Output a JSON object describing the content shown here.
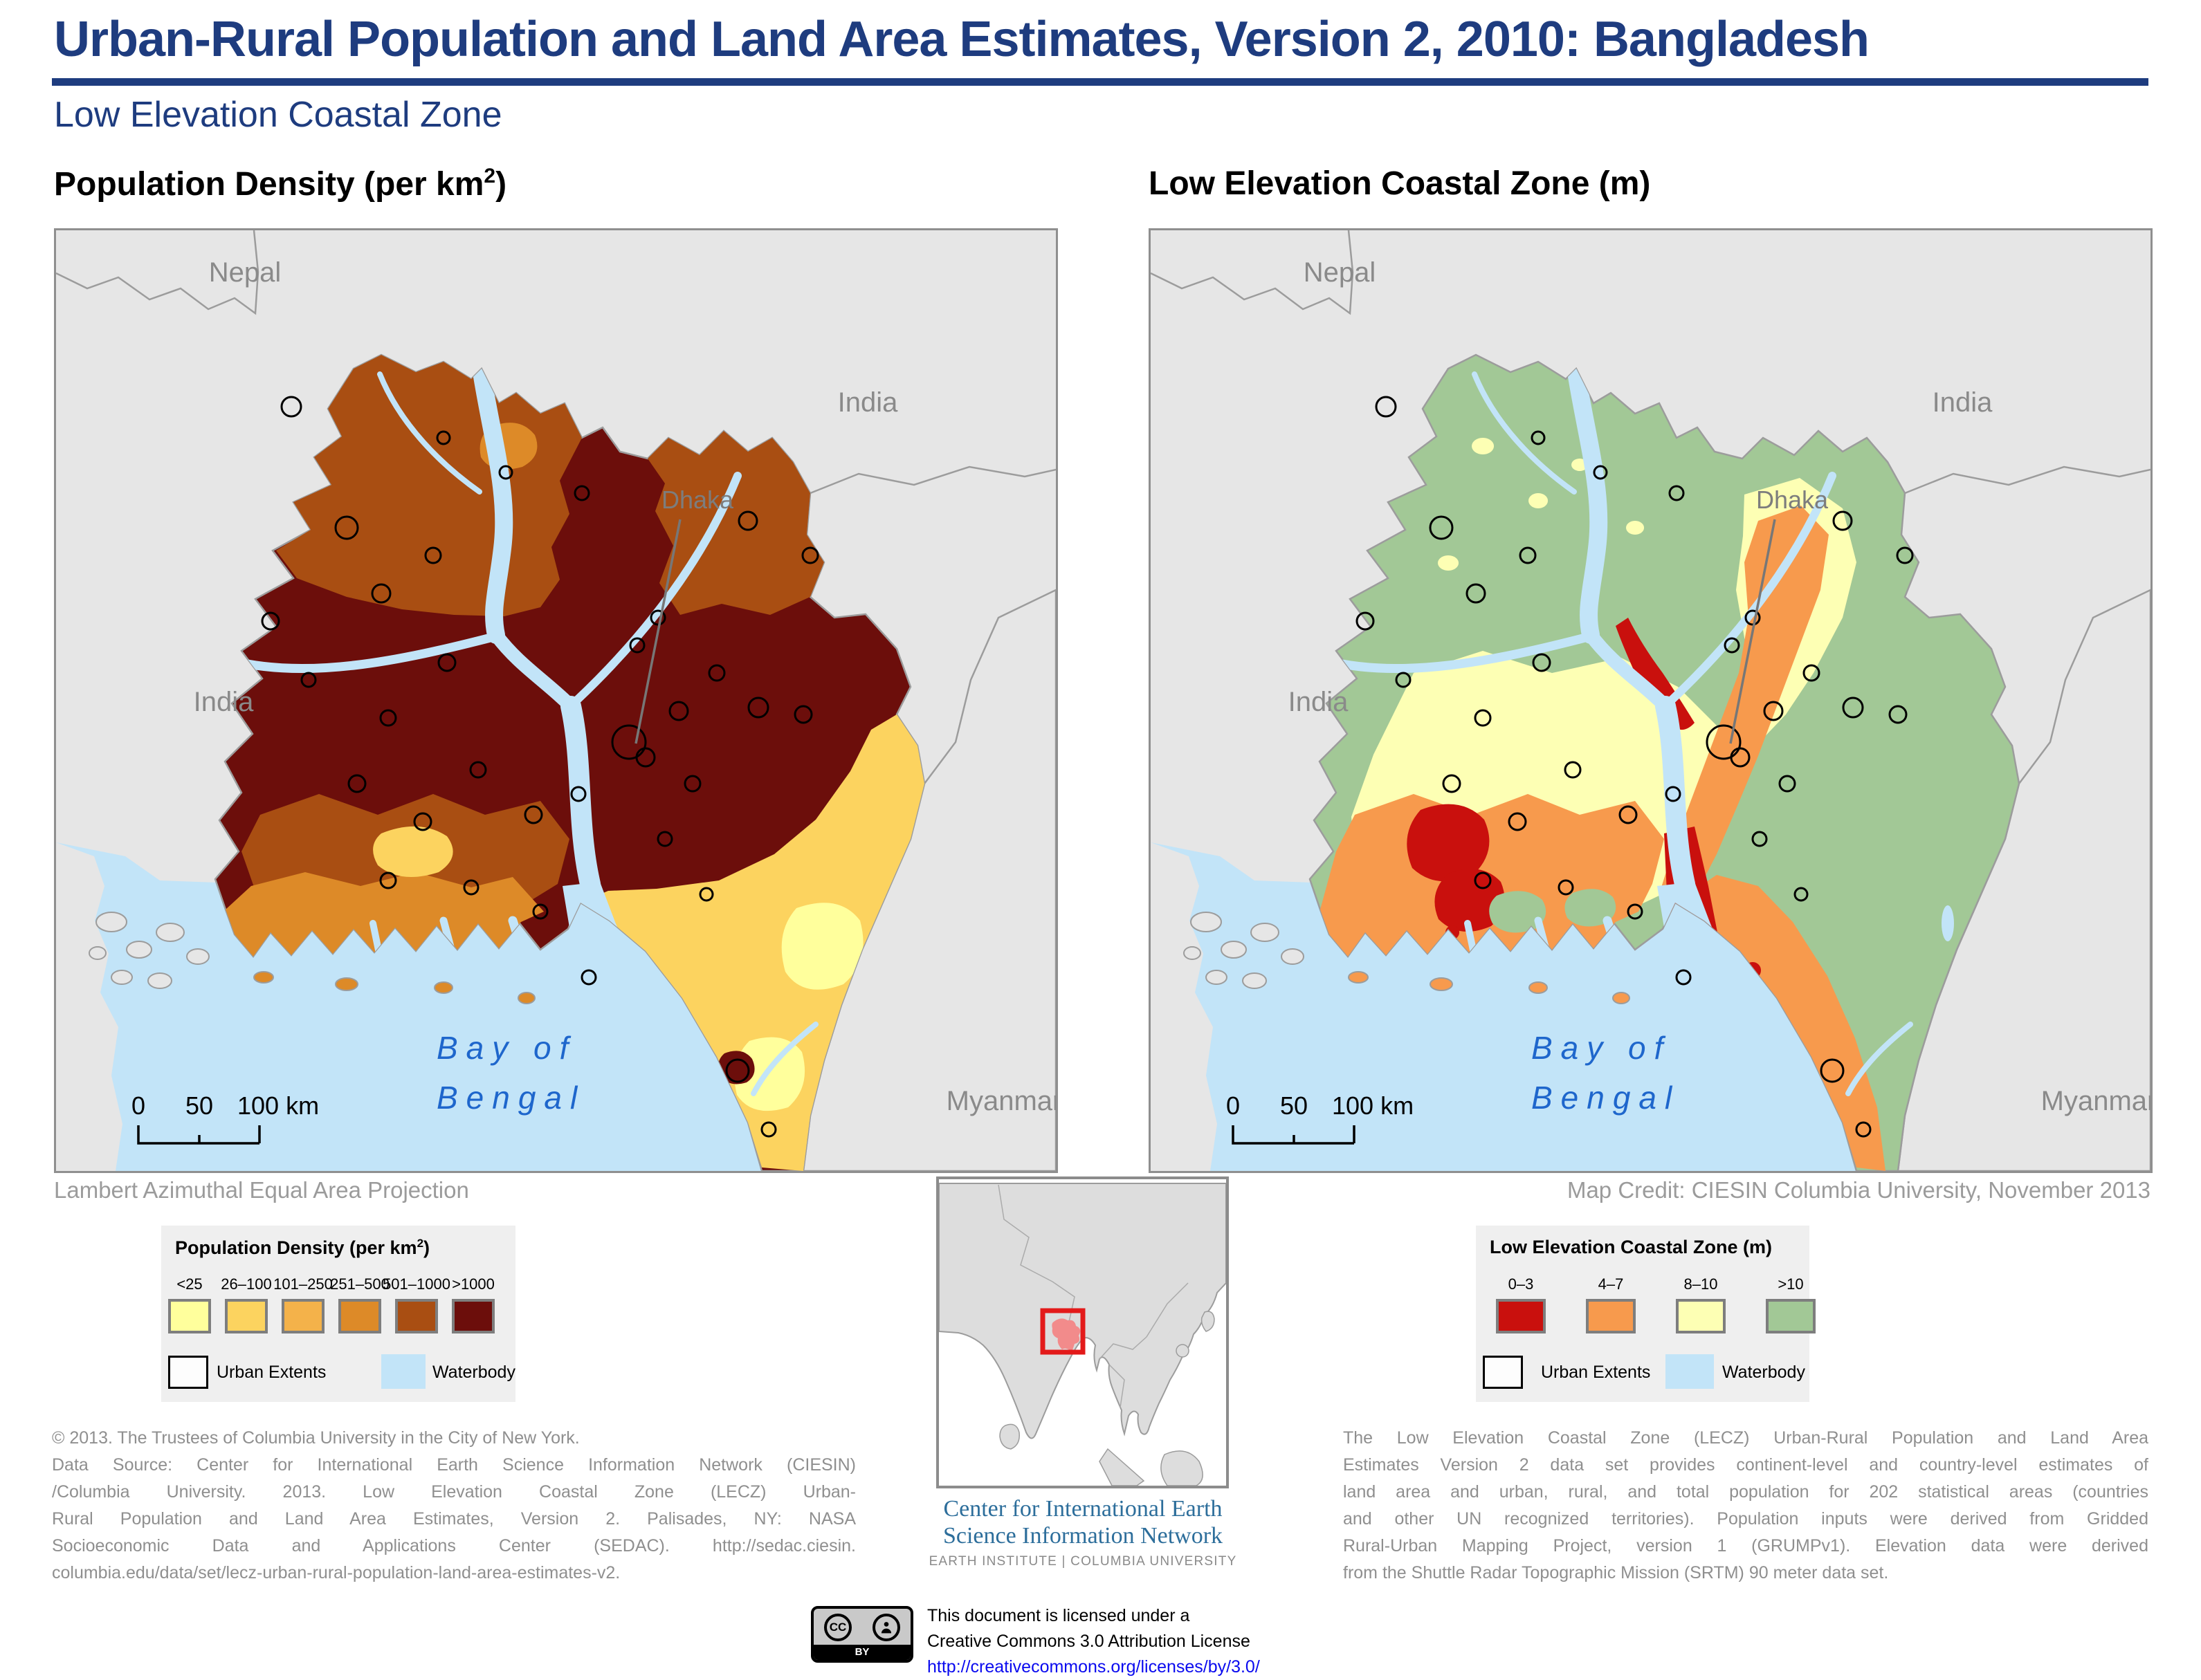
{
  "header": {
    "title": "Urban-Rural Population and Land Area Estimates, Version 2, 2010: Bangladesh",
    "subtitle": "Low Elevation Coastal Zone"
  },
  "maps": {
    "left_title": {
      "prefix": "Population Density (per km",
      "sup": "2",
      "suffix": ")"
    },
    "right_title": "Low Elevation Coastal Zone (m)",
    "labels": {
      "nepal": "Nepal",
      "india": "India",
      "dhaka": "Dhaka",
      "myanmar": "Myanmar",
      "bay_line1": "Bay of",
      "bay_line2": "Bengal"
    },
    "scalebar": {
      "zero": "0",
      "mid": "50",
      "end": "100 km"
    },
    "projection_note": "Lambert Azimuthal Equal Area Projection",
    "map_credit": "Map Credit: CIESIN Columbia University, November 2013"
  },
  "legend_density": {
    "title_prefix": "Population Density (per km",
    "title_sup": "2",
    "title_suffix": ")",
    "classes": [
      {
        "label": "<25"
      },
      {
        "label": "26–100"
      },
      {
        "label": "101–250"
      },
      {
        "label": "251–500"
      },
      {
        "label": "501–1000"
      },
      {
        "label": ">1000"
      }
    ],
    "urban_label": "Urban Extents",
    "water_label": "Waterbody"
  },
  "legend_lecz": {
    "title": "Low Elevation Coastal Zone (m)",
    "classes": [
      {
        "label": "0–3"
      },
      {
        "label": "4–7"
      },
      {
        "label": "8–10"
      },
      {
        "label": ">10"
      }
    ],
    "urban_label": "Urban Extents",
    "water_label": "Waterbody"
  },
  "source_note": {
    "lines": [
      "© 2013. The Trustees of Columbia University in the City of New York.",
      "Data Source: Center for International Earth Science Information Network (CIESIN)",
      "/Columbia University. 2013. Low Elevation Coastal Zone (LECZ) Urban-",
      "Rural Population and Land Area Estimates, Version 2. Palisades, NY: NASA",
      "Socioeconomic Data and Applications Center (SEDAC). http://sedac.ciesin.",
      "columbia.edu/data/set/lecz-urban-rural-population-land-area-estimates-v2."
    ]
  },
  "description": {
    "lines": [
      "The Low Elevation Coastal Zone (LECZ) Urban-Rural Population and Land Area",
      "Estimates Version 2 data set provides continent-level and country-level estimates of",
      "land area and urban, rural, and total population for 202 statistical areas (countries",
      "and other UN recognized territories).  Population inputs were derived from Gridded",
      "Rural-Urban Mapping Project, version 1 (GRUMPv1).  Elevation data were derived",
      "from the Shuttle Radar Topographic Mission (SRTM) 90 meter data set."
    ]
  },
  "ciesin_logo": {
    "line1": "Center for International Earth",
    "line2": "Science Information Network",
    "line3": "EARTH INSTITUTE | COLUMBIA UNIVERSITY"
  },
  "license": {
    "line1": "This document is licensed under a",
    "line2": "Creative Commons 3.0 Attribution License",
    "url": "http://creativecommons.org/licenses/by/3.0/",
    "badge_cc": "CC",
    "badge_by": "BY"
  },
  "colors": {
    "navy": "#1E3C7F",
    "label_gray": "#8A8A8A",
    "dhaka_gray": "#7D7D7D",
    "note_gray": "#9B9B9B",
    "body_gray": "#8F8F8F",
    "bay_blue": "#1E66CC",
    "ocean": "#C2E4F8",
    "water": "#C2E4F8",
    "land": "#E6E6E6",
    "border_line": "#9C9C9C",
    "panel_border": "#8F8F8F",
    "legend_bg": "#EFEFEF",
    "urban_fill": "#FDFDFD",
    "urban_outline": "#000000",
    "density": [
      "#FFFF9C",
      "#FCD35F",
      "#F4B24A",
      "#DD8A28",
      "#A94E12",
      "#6C0E0B"
    ],
    "lecz": [
      "#C9100D",
      "#F79A4D",
      "#FDFFB4",
      "#A2C896"
    ],
    "inset_land": "#DDDDDD",
    "inset_red": "#E31A1A",
    "inset_pink": "#F28B8B",
    "link_blue": "#0A0AEF",
    "ciesin_blue": "#2D6E9B"
  }
}
